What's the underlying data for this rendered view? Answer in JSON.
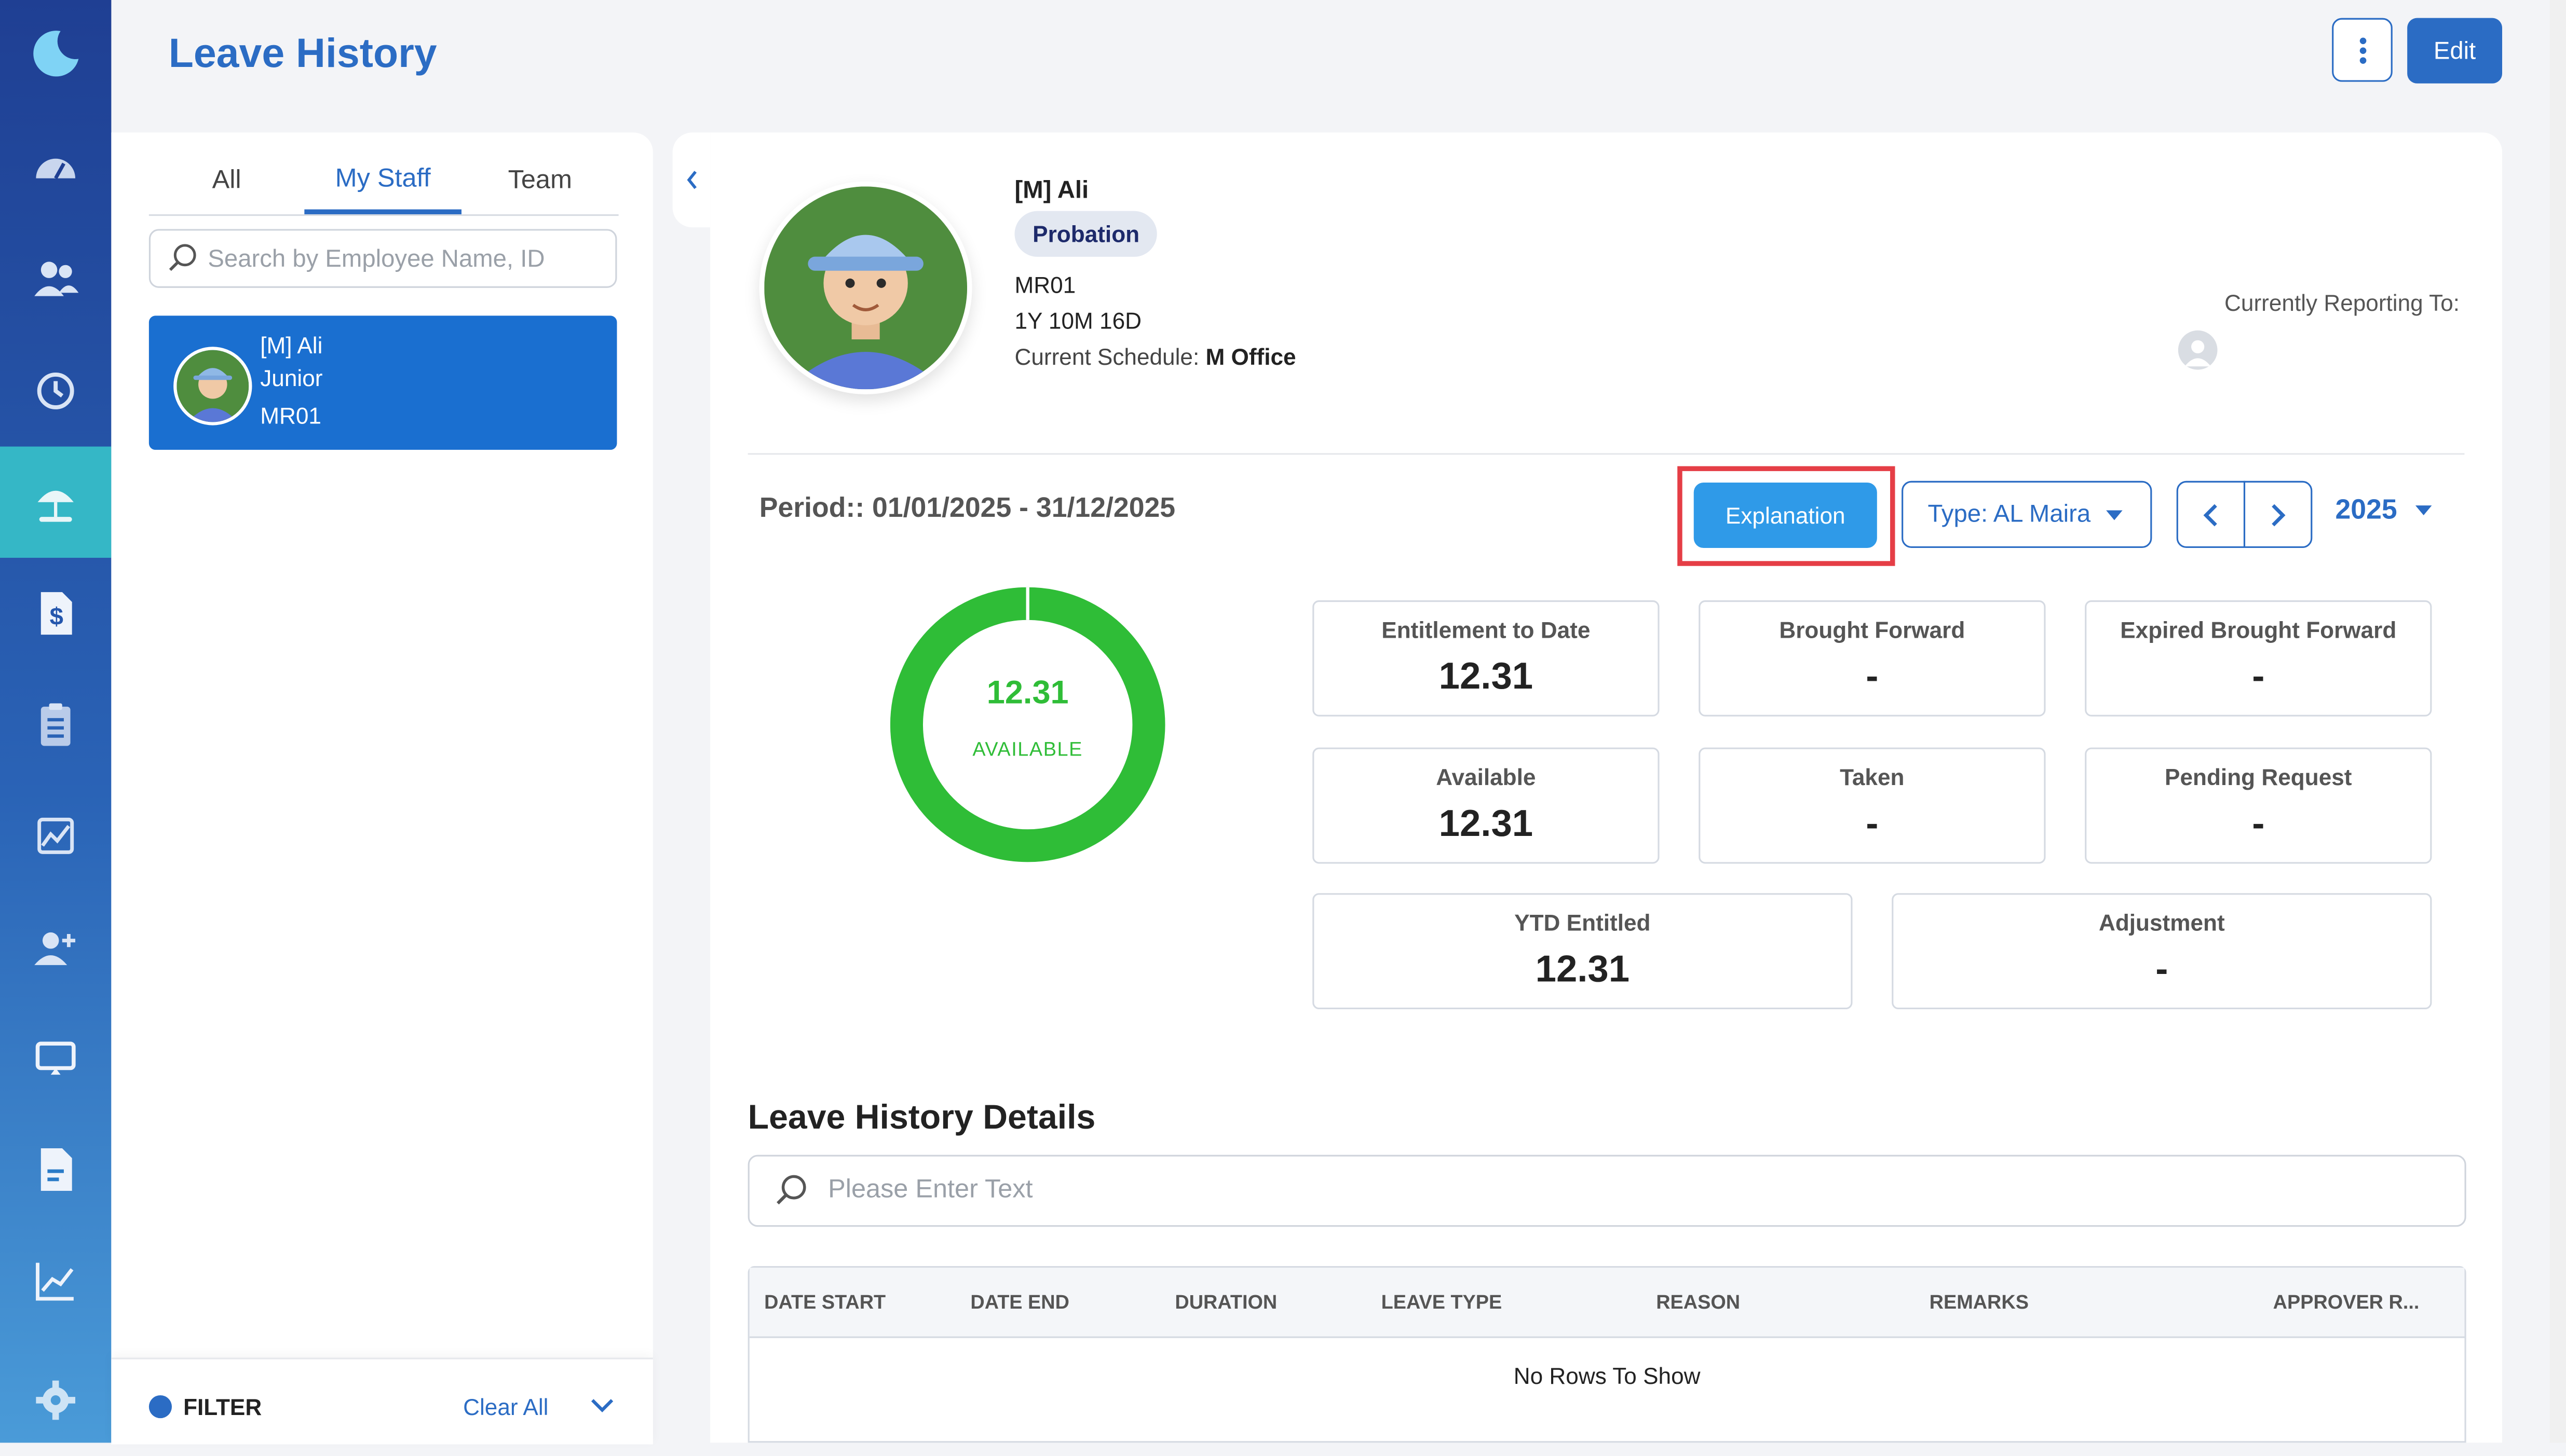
{
  "header": {
    "title": "Leave History",
    "edit_label": "Edit"
  },
  "sidebar": {
    "icons": [
      "moon-logo-icon",
      "dashboard-icon",
      "people-icon",
      "history-icon",
      "leave-icon",
      "payroll-icon",
      "clipboard-icon",
      "chart-icon",
      "add-user-icon",
      "monitor-icon",
      "document-icon",
      "analytics-icon",
      "settings-icon"
    ]
  },
  "left": {
    "tabs": [
      "All",
      "My Staff",
      "Team"
    ],
    "search_placeholder": "Search by Employee Name, ID",
    "employee": {
      "name": "[M] Ali",
      "role": "Junior",
      "id": "MR01"
    },
    "filter": {
      "label": "FILTER",
      "clear": "Clear All"
    }
  },
  "profile": {
    "name": "[M] Ali",
    "status": "Probation",
    "id": "MR01",
    "tenure": "1Y 10M 16D",
    "schedule_label": "Current Schedule:",
    "schedule_value": "M Office",
    "reporting_label": "Currently Reporting To:"
  },
  "controls": {
    "period": "Period:: 01/01/2025 - 31/12/2025",
    "explanation": "Explanation",
    "type": "Type: AL Maira",
    "year": "2025"
  },
  "donut": {
    "value": "12.31",
    "label": "AVAILABLE",
    "fraction_available": 1.0,
    "color": "#2fbd37"
  },
  "stats": [
    {
      "label": "Entitlement to Date",
      "value": "12.31"
    },
    {
      "label": "Brought Forward",
      "value": "-"
    },
    {
      "label": "Expired Brought Forward",
      "value": "-"
    },
    {
      "label": "Available",
      "value": "12.31"
    },
    {
      "label": "Taken",
      "value": "-"
    },
    {
      "label": "Pending Request",
      "value": "-"
    },
    {
      "label": "YTD Entitled",
      "value": "12.31"
    },
    {
      "label": "Adjustment",
      "value": "-"
    }
  ],
  "details": {
    "title": "Leave History Details",
    "search_placeholder": "Please Enter Text",
    "columns": [
      "DATE START",
      "DATE END",
      "DURATION",
      "LEAVE TYPE",
      "REASON",
      "REMARKS",
      "APPROVER R..."
    ],
    "empty": "No Rows To Show"
  }
}
